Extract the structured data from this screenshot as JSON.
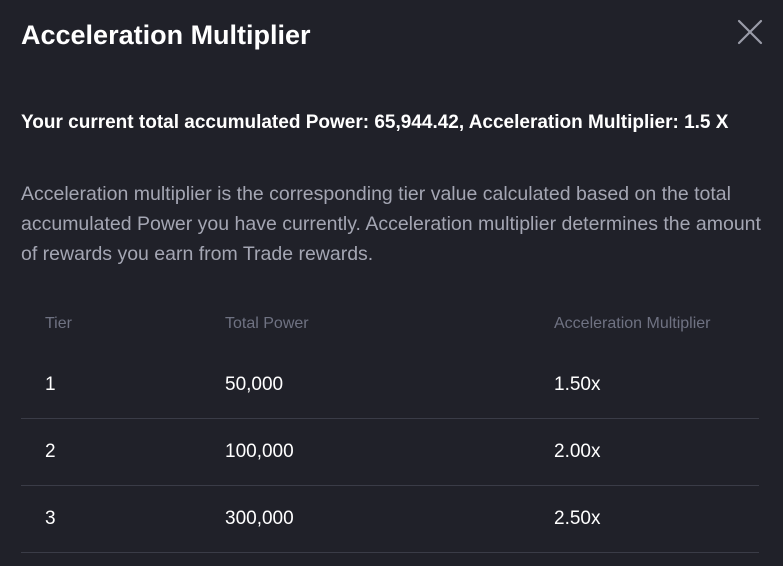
{
  "modal": {
    "title": "Acceleration Multiplier",
    "close_icon": "close-icon"
  },
  "summary": {
    "text": "Your current total accumulated Power: 65,944.42, Acceleration Multiplier: 1.5 X"
  },
  "description": {
    "text": "Acceleration multiplier is the corresponding tier value calculated based on the total accumulated Power you have currently. Acceleration multiplier determines the amount of rewards you earn from Trade rewards."
  },
  "table": {
    "headers": {
      "tier": "Tier",
      "total_power": "Total Power",
      "multiplier": "Acceleration Multiplier"
    },
    "rows": [
      {
        "tier": "1",
        "total_power": "50,000",
        "multiplier": "1.50x"
      },
      {
        "tier": "2",
        "total_power": "100,000",
        "multiplier": "2.00x"
      },
      {
        "tier": "3",
        "total_power": "300,000",
        "multiplier": "2.50x"
      }
    ]
  },
  "colors": {
    "background": "#202129",
    "title": "#ffffff",
    "description": "#a4a6b3",
    "header": "#6f7282",
    "divider": "#3a3c47"
  }
}
